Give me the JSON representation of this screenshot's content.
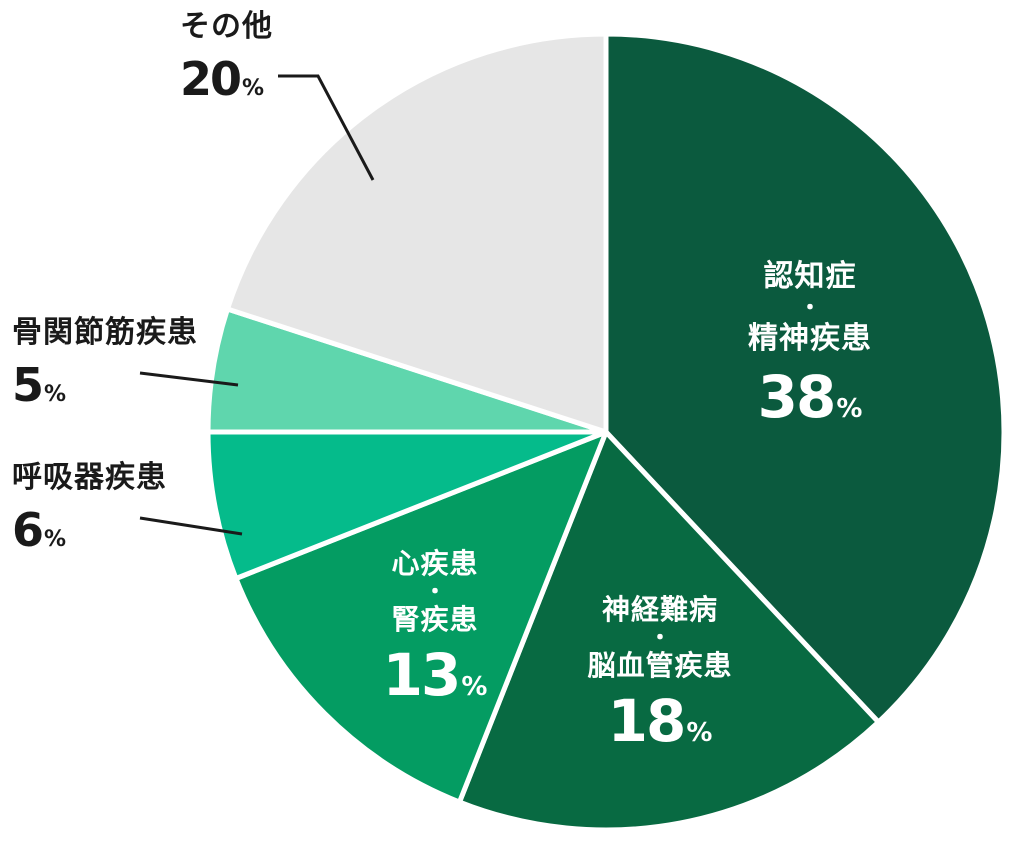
{
  "chart_data": {
    "type": "pie",
    "slices": [
      {
        "label": "認知症・精神疾患",
        "label_line1": "認知症",
        "separator": "・",
        "label_line2": "精神疾患",
        "value": 38,
        "value_text": "38",
        "unit": "%",
        "color": "#0b5a3e"
      },
      {
        "label": "神経難病・脳血管疾患",
        "label_line1": "神経難病",
        "separator": "・",
        "label_line2": "脳血管疾患",
        "value": 18,
        "value_text": "18",
        "unit": "%",
        "color": "#086a42"
      },
      {
        "label": "心疾患・腎疾患",
        "label_line1": "心疾患",
        "separator": "・",
        "label_line2": "腎疾患",
        "value": 13,
        "value_text": "13",
        "unit": "%",
        "color": "#049c62"
      },
      {
        "label": "呼吸器疾患",
        "value": 6,
        "value_text": "6",
        "unit": "%",
        "color": "#05bb8b"
      },
      {
        "label": "骨関節筋疾患",
        "value": 5,
        "value_text": "5",
        "unit": "%",
        "color": "#5fd6ad"
      },
      {
        "label": "その他",
        "value": 20,
        "value_text": "20",
        "unit": "%",
        "color": "#e6e6e6"
      }
    ],
    "start_angle_deg": 0,
    "direction": "clockwise",
    "legend": "none"
  }
}
